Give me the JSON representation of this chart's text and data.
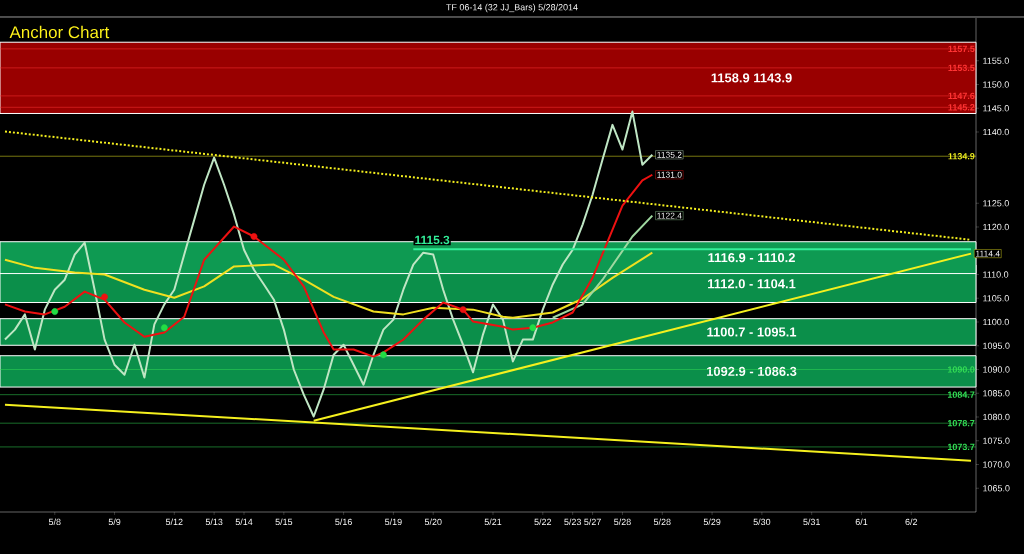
{
  "chart_data": {
    "type": "line",
    "title": "TF 06-14 (32 JJ_Bars)  5/28/2014",
    "subtitle": "Anchor Chart",
    "marker": "none",
    "categories": [
      null,
      null,
      null,
      null,
      null,
      "5/8",
      null,
      null,
      null,
      null,
      null,
      "5/9",
      null,
      null,
      null,
      null,
      null,
      "5/12",
      null,
      null,
      null,
      "5/13",
      null,
      null,
      "5/14",
      null,
      null,
      null,
      "5/15",
      null,
      null,
      null,
      null,
      null,
      "5/16",
      null,
      null,
      null,
      null,
      "5/19",
      null,
      null,
      null,
      "5/20",
      null,
      null,
      null,
      null,
      null,
      "5/21",
      null,
      null,
      null,
      null,
      "5/22",
      null,
      null,
      "5/23",
      null,
      "5/27",
      null,
      null,
      "5/28",
      null,
      null,
      null,
      "5/28",
      null,
      null,
      null,
      null,
      "5/29",
      null,
      null,
      null,
      null,
      "5/30",
      null,
      null,
      null,
      null,
      "5/31",
      null,
      null,
      null,
      null,
      "6/1",
      null,
      null,
      null,
      null,
      "6/2",
      null,
      null,
      null,
      null,
      null,
      null
    ],
    "ylim": [
      1060,
      1164
    ],
    "yticks": [
      {
        "value": 1155,
        "label": "1155.0"
      },
      {
        "value": 1150,
        "label": "1150.0"
      },
      {
        "value": 1145,
        "label": "1145.0"
      },
      {
        "value": 1140,
        "label": "1140.0"
      },
      {
        "value": 1125,
        "label": "1125.0"
      },
      {
        "value": 1120,
        "label": "1120.0"
      },
      {
        "value": 1110,
        "label": "1110.0"
      },
      {
        "value": 1105,
        "label": "1105.0"
      },
      {
        "value": 1100,
        "label": "1100.0"
      },
      {
        "value": 1095,
        "label": "1095.0"
      },
      {
        "value": 1090,
        "label": "1090.0"
      },
      {
        "value": 1085,
        "label": "1085.0"
      },
      {
        "value": 1080,
        "label": "1080.0"
      },
      {
        "value": 1075,
        "label": "1075.0"
      },
      {
        "value": 1070,
        "label": "1070.0"
      },
      {
        "value": 1065,
        "label": "1065.0"
      }
    ],
    "bands": [
      {
        "axis": "y",
        "from": 1143.9,
        "to": 1158.9,
        "label": "1158.9 1143.9",
        "color": "#990000"
      },
      {
        "axis": "y",
        "from": 1104.1,
        "to": 1112.0,
        "label": "1112.0 - 1104.1",
        "color": "#0b8f4a"
      },
      {
        "axis": "y",
        "from": 1110.2,
        "to": 1116.9,
        "label": "1116.9 - 1110.2",
        "color": "#0e9a52"
      },
      {
        "axis": "y",
        "from": 1095.1,
        "to": 1100.7,
        "label": "1100.7 - 1095.1",
        "color": "#0b8f4a"
      },
      {
        "axis": "y",
        "from": 1086.3,
        "to": 1092.9,
        "label": "1092.9 - 1086.3",
        "color": "#0b8f4a"
      }
    ],
    "ref_lines": [
      {
        "axis": "y",
        "value": 1157.5,
        "label": "1157.5",
        "color": "#ff3333"
      },
      {
        "axis": "y",
        "value": 1153.5,
        "label": "1153.5",
        "color": "#ff3333"
      },
      {
        "axis": "y",
        "value": 1147.6,
        "label": "1147.6",
        "color": "#ff3333"
      },
      {
        "axis": "y",
        "value": 1145.2,
        "label": "1145.2",
        "color": "#ff3333"
      },
      {
        "axis": "y",
        "value": 1134.9,
        "label": "1134.9",
        "color": "#f0f020"
      },
      {
        "axis": "y",
        "value": 1090.0,
        "label": "1090.0",
        "color": "#33dd55"
      },
      {
        "axis": "y",
        "value": 1084.7,
        "label": "1084.7",
        "color": "#33dd55"
      },
      {
        "axis": "y",
        "value": 1078.7,
        "label": "1078.7",
        "color": "#33dd55"
      },
      {
        "axis": "y",
        "value": 1073.7,
        "label": "1073.7",
        "color": "#33dd55"
      }
    ],
    "series": [
      {
        "color": "#bfe6c4",
        "values": [
          1096.3,
          1098.4,
          1101.6,
          1094.2,
          1102.6,
          1106.8,
          1108.9,
          1114.2,
          1116.7,
          1106.8,
          1096.3,
          1091.0,
          1088.9,
          1095.2,
          1088.3,
          1099.5,
          1103.7,
          1106.8,
          1114.2,
          1121.5,
          1128.9,
          1134.6,
          1128.9,
          1122.6,
          1115.2,
          1111.0,
          1107.9,
          1104.7,
          1098.4,
          1090.0,
          1084.7,
          1080.1,
          1085.8,
          1093.1,
          1095.2,
          1091.0,
          1086.8,
          1093.1,
          1098.4,
          1100.5,
          1106.8,
          1112.1,
          1114.6,
          1114.2,
          1106.8,
          1100.5,
          1095.2,
          1089.4,
          1097.4,
          1103.7,
          1100.5,
          1091.7,
          1096.3,
          1096.3,
          1102.6,
          1107.9,
          1112.1,
          1115.2,
          1120.5,
          1126.8,
          1134.2,
          1141.5,
          1136.3,
          1144.3,
          1133.1,
          1135.2,
          null,
          null,
          null,
          null,
          null,
          null,
          null,
          null,
          null,
          null,
          null,
          null,
          null,
          null,
          null,
          null,
          null,
          null,
          null,
          null,
          null,
          null,
          null,
          null,
          null,
          null,
          null,
          null,
          null,
          null,
          null,
          null
        ],
        "value_labels": [
          null,
          null,
          null,
          null,
          null,
          null,
          null,
          null,
          null,
          null,
          null,
          null,
          null,
          null,
          null,
          null,
          null,
          null,
          null,
          null,
          null,
          null,
          null,
          null,
          null,
          null,
          null,
          null,
          null,
          null,
          null,
          null,
          null,
          null,
          null,
          null,
          null,
          null,
          null,
          null,
          null,
          null,
          null,
          null,
          null,
          null,
          null,
          null,
          null,
          null,
          null,
          null,
          null,
          null,
          null,
          null,
          null,
          null,
          null,
          null,
          null,
          null,
          null,
          null,
          null,
          "1135.2",
          null,
          null,
          null,
          null,
          null,
          null,
          null,
          null,
          null,
          null,
          null,
          null,
          null,
          null,
          null,
          null,
          null,
          null,
          null,
          null,
          null,
          null,
          null,
          null,
          null,
          null,
          null,
          null,
          null,
          null,
          null,
          null
        ]
      },
      {
        "color": "#f0e020",
        "values": [
          1113.1,
          null,
          null,
          1111.4,
          null,
          null,
          null,
          1110.4,
          null,
          null,
          1110.0,
          null,
          null,
          null,
          1106.8,
          null,
          null,
          1105.1,
          null,
          null,
          1107.5,
          null,
          null,
          1111.7,
          null,
          null,
          null,
          1112.1,
          null,
          null,
          1108.9,
          null,
          null,
          1105.3,
          null,
          null,
          null,
          1102.2,
          null,
          null,
          1101.6,
          null,
          null,
          1103.0,
          null,
          null,
          null,
          1102.6,
          null,
          null,
          1101.1,
          1100.9,
          null,
          null,
          null,
          1102.0,
          null,
          null,
          1104.9,
          null,
          null,
          1109.3,
          null,
          null,
          null,
          1114.6,
          null,
          null,
          null,
          null,
          null,
          null,
          null,
          null,
          null,
          null,
          null,
          null,
          null,
          null,
          null,
          null,
          null,
          null,
          null,
          null,
          null,
          null,
          null,
          null,
          null,
          null,
          null,
          null,
          null,
          null,
          null,
          null
        ]
      },
      {
        "color": "#9fd8a0",
        "values": [
          null,
          null,
          null,
          null,
          null,
          null,
          null,
          null,
          null,
          null,
          null,
          null,
          null,
          null,
          null,
          null,
          null,
          null,
          null,
          null,
          null,
          null,
          null,
          null,
          null,
          null,
          null,
          null,
          null,
          null,
          null,
          null,
          null,
          null,
          null,
          null,
          null,
          null,
          null,
          null,
          null,
          null,
          null,
          null,
          null,
          null,
          null,
          null,
          null,
          null,
          null,
          null,
          null,
          null,
          null,
          1100.9,
          null,
          null,
          1103.7,
          null,
          1108.9,
          null,
          null,
          1118.0,
          null,
          1122.4,
          null,
          null,
          null,
          null,
          null,
          null,
          null,
          null,
          null,
          null,
          null,
          null,
          null,
          null,
          null,
          null,
          null,
          null,
          null,
          null,
          null,
          null,
          null,
          null,
          null,
          null,
          null,
          null,
          null,
          null,
          null,
          null
        ],
        "value_labels": [
          null,
          null,
          null,
          null,
          null,
          null,
          null,
          null,
          null,
          null,
          null,
          null,
          null,
          null,
          null,
          null,
          null,
          null,
          null,
          null,
          null,
          null,
          null,
          null,
          null,
          null,
          null,
          null,
          null,
          null,
          null,
          null,
          null,
          null,
          null,
          null,
          null,
          null,
          null,
          null,
          null,
          null,
          null,
          null,
          null,
          null,
          null,
          null,
          null,
          null,
          null,
          null,
          null,
          null,
          null,
          null,
          null,
          null,
          null,
          null,
          null,
          null,
          null,
          null,
          null,
          "1122.4",
          null,
          null,
          null,
          null,
          null,
          null,
          null,
          null,
          null,
          null,
          null,
          null,
          null,
          null,
          null,
          null,
          null,
          null,
          null,
          null,
          null,
          null,
          null,
          null,
          null,
          null,
          null,
          null,
          null,
          null,
          null,
          null
        ]
      },
      {
        "color": "#ee1111",
        "values": [
          1103.7,
          null,
          1102.2,
          null,
          1101.6,
          null,
          1103.2,
          null,
          1106.4,
          null,
          1104.7,
          null,
          1099.9,
          null,
          1096.9,
          null,
          1097.8,
          null,
          1101.1,
          null,
          1113.1,
          null,
          null,
          1120.1,
          null,
          1118.0,
          null,
          null,
          1113.1,
          null,
          1107.5,
          null,
          1097.8,
          1094.2,
          null,
          1094.2,
          null,
          1092.7,
          1093.6,
          null,
          1096.3,
          null,
          1100.5,
          null,
          1104.1,
          null,
          1102.6,
          1100.1,
          null,
          null,
          1099.0,
          1098.4,
          null,
          1098.8,
          null,
          1099.9,
          null,
          1102.0,
          null,
          1109.3,
          null,
          null,
          1124.5,
          null,
          1129.8,
          1131.0,
          null,
          null,
          null,
          null,
          null,
          null,
          null,
          null,
          null,
          null,
          null,
          null,
          null,
          null,
          null,
          null,
          null,
          null,
          null,
          null,
          null,
          null,
          null,
          null,
          null,
          null,
          null,
          null,
          null,
          null,
          null,
          null
        ],
        "value_labels": [
          null,
          null,
          null,
          null,
          null,
          null,
          null,
          null,
          null,
          null,
          null,
          null,
          null,
          null,
          null,
          null,
          null,
          null,
          null,
          null,
          null,
          null,
          null,
          null,
          null,
          null,
          null,
          null,
          null,
          null,
          null,
          null,
          null,
          null,
          null,
          null,
          null,
          null,
          null,
          null,
          null,
          null,
          null,
          null,
          null,
          null,
          null,
          null,
          null,
          null,
          null,
          null,
          null,
          null,
          null,
          null,
          null,
          null,
          null,
          null,
          null,
          null,
          null,
          null,
          null,
          "1131.0",
          null,
          null,
          null,
          null,
          null,
          null,
          null,
          null,
          null,
          null,
          null,
          null,
          null,
          null,
          null,
          null,
          null,
          null,
          null,
          null,
          null,
          null,
          null,
          null,
          null,
          null,
          null,
          null,
          null,
          null,
          null,
          null
        ]
      },
      {
        "color": "#f5f01e",
        "values": [
          1082.6,
          null,
          null,
          null,
          null,
          null,
          null,
          null,
          null,
          null,
          null,
          null,
          null,
          null,
          null,
          null,
          null,
          null,
          null,
          null,
          null,
          null,
          null,
          null,
          null,
          null,
          null,
          null,
          null,
          null,
          null,
          null,
          null,
          null,
          null,
          null,
          null,
          null,
          null,
          null,
          null,
          null,
          null,
          null,
          null,
          null,
          null,
          null,
          null,
          null,
          null,
          null,
          null,
          null,
          null,
          null,
          null,
          null,
          null,
          null,
          null,
          null,
          null,
          null,
          null,
          null,
          null,
          null,
          null,
          null,
          null,
          null,
          null,
          null,
          null,
          null,
          null,
          null,
          null,
          null,
          null,
          null,
          null,
          null,
          null,
          null,
          null,
          null,
          null,
          null,
          null,
          null,
          null,
          null,
          null,
          null,
          null,
          1070.8
        ]
      },
      {
        "color": "#f5f01e",
        "values": [
          null,
          null,
          null,
          null,
          null,
          null,
          null,
          null,
          null,
          null,
          null,
          null,
          null,
          null,
          null,
          null,
          null,
          null,
          null,
          null,
          null,
          null,
          null,
          null,
          null,
          null,
          null,
          null,
          null,
          null,
          null,
          1079.2,
          null,
          null,
          null,
          null,
          null,
          null,
          null,
          null,
          null,
          null,
          null,
          null,
          null,
          null,
          null,
          null,
          null,
          null,
          null,
          null,
          null,
          null,
          null,
          null,
          null,
          null,
          null,
          null,
          null,
          null,
          null,
          null,
          null,
          null,
          null,
          null,
          null,
          null,
          null,
          null,
          null,
          null,
          null,
          null,
          null,
          null,
          null,
          null,
          null,
          null,
          null,
          null,
          null,
          null,
          null,
          null,
          null,
          null,
          null,
          null,
          null,
          null,
          null,
          null,
          null,
          1114.4
        ],
        "value_labels": [
          null,
          null,
          null,
          null,
          null,
          null,
          null,
          null,
          null,
          null,
          null,
          null,
          null,
          null,
          null,
          null,
          null,
          null,
          null,
          null,
          null,
          null,
          null,
          null,
          null,
          null,
          null,
          null,
          null,
          null,
          null,
          null,
          null,
          null,
          null,
          null,
          null,
          null,
          null,
          null,
          null,
          null,
          null,
          null,
          null,
          null,
          null,
          null,
          null,
          null,
          null,
          null,
          null,
          null,
          null,
          null,
          null,
          null,
          null,
          null,
          null,
          null,
          null,
          null,
          null,
          null,
          null,
          null,
          null,
          null,
          null,
          null,
          null,
          null,
          null,
          null,
          null,
          null,
          null,
          null,
          null,
          null,
          null,
          null,
          null,
          null,
          null,
          null,
          null,
          null,
          null,
          null,
          null,
          null,
          null,
          null,
          null,
          "1114.4"
        ]
      },
      {
        "color": "#f5f01e",
        "line_style": "dotted",
        "values": [
          1140.1,
          null,
          null,
          null,
          null,
          null,
          null,
          null,
          null,
          null,
          null,
          null,
          null,
          null,
          null,
          null,
          null,
          null,
          null,
          null,
          null,
          null,
          null,
          null,
          null,
          null,
          null,
          null,
          null,
          null,
          null,
          null,
          null,
          null,
          null,
          null,
          null,
          null,
          null,
          null,
          null,
          null,
          null,
          null,
          null,
          null,
          null,
          null,
          null,
          null,
          null,
          null,
          null,
          null,
          null,
          null,
          null,
          null,
          null,
          null,
          null,
          null,
          null,
          null,
          null,
          null,
          null,
          null,
          null,
          null,
          null,
          null,
          null,
          null,
          null,
          null,
          null,
          null,
          null,
          null,
          null,
          null,
          null,
          null,
          null,
          null,
          null,
          null,
          null,
          null,
          null,
          null,
          null,
          null,
          null,
          null,
          null,
          1117.3
        ]
      },
      {
        "name": "1115.3",
        "color": "#33ee99",
        "values": [
          null,
          null,
          null,
          null,
          null,
          null,
          null,
          null,
          null,
          null,
          null,
          null,
          null,
          null,
          null,
          null,
          null,
          null,
          null,
          null,
          null,
          null,
          null,
          null,
          null,
          null,
          null,
          null,
          null,
          null,
          null,
          null,
          null,
          null,
          null,
          null,
          null,
          null,
          null,
          null,
          null,
          1115.3,
          null,
          null,
          null,
          null,
          null,
          null,
          null,
          null,
          null,
          null,
          null,
          null,
          null,
          null,
          null,
          null,
          null,
          null,
          null,
          null,
          null,
          null,
          null,
          null,
          null,
          null,
          null,
          null,
          null,
          null,
          null,
          null,
          null,
          null,
          null,
          null,
          null,
          null,
          null,
          null,
          null,
          null,
          null,
          null,
          null,
          null,
          null,
          null,
          null,
          null,
          null,
          null,
          null,
          null,
          null,
          1115.3
        ]
      },
      {
        "type": "scatter",
        "marker": "circle",
        "color": "#22dd44",
        "values": [
          null,
          null,
          null,
          null,
          null,
          1102.2,
          null,
          null,
          null,
          null,
          null,
          null,
          null,
          null,
          null,
          null,
          1098.8,
          null,
          null,
          null,
          null,
          null,
          null,
          null,
          null,
          null,
          null,
          null,
          null,
          null,
          null,
          null,
          null,
          null,
          null,
          null,
          null,
          null,
          1093.1,
          null,
          null,
          null,
          null,
          null,
          null,
          null,
          null,
          null,
          null,
          null,
          null,
          null,
          null,
          1098.8,
          null,
          null,
          null,
          null,
          null,
          null,
          null,
          null,
          null,
          null,
          null,
          null,
          null,
          null,
          null,
          null,
          null,
          null,
          null,
          null,
          null,
          null,
          null,
          null,
          null,
          null,
          null,
          null,
          null,
          null,
          null,
          null,
          null,
          null,
          null,
          null,
          null,
          null,
          null,
          null,
          null,
          null,
          null,
          null
        ]
      },
      {
        "type": "scatter",
        "marker": "circle",
        "color": "#ee1111",
        "values": [
          null,
          null,
          null,
          null,
          null,
          null,
          null,
          null,
          null,
          null,
          1105.3,
          null,
          null,
          null,
          null,
          null,
          null,
          null,
          null,
          null,
          null,
          null,
          null,
          null,
          null,
          1118.0,
          null,
          null,
          null,
          null,
          null,
          null,
          null,
          null,
          null,
          null,
          null,
          null,
          null,
          null,
          null,
          null,
          null,
          null,
          null,
          null,
          1102.6,
          null,
          null,
          null,
          null,
          null,
          null,
          null,
          null,
          null,
          null,
          null,
          null,
          null,
          null,
          null,
          null,
          null,
          null,
          null,
          null,
          null,
          null,
          null,
          null,
          null,
          null,
          null,
          null,
          null,
          null,
          null,
          null,
          null,
          null,
          null,
          null,
          null,
          null,
          null,
          null,
          null,
          null,
          null,
          null,
          null,
          null,
          null,
          null,
          null,
          null,
          null
        ]
      }
    ]
  }
}
